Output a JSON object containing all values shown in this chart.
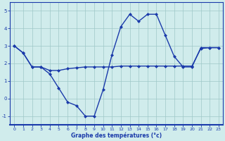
{
  "x": [
    0,
    1,
    2,
    3,
    4,
    5,
    6,
    7,
    8,
    9,
    10,
    11,
    12,
    13,
    14,
    15,
    16,
    17,
    18,
    19,
    20,
    21,
    22,
    23
  ],
  "y_temp": [
    3.0,
    2.6,
    1.8,
    1.8,
    1.4,
    0.6,
    -0.2,
    -0.4,
    -1.0,
    -1.0,
    0.5,
    2.5,
    4.1,
    4.8,
    4.4,
    4.8,
    4.8,
    3.6,
    2.4,
    1.8,
    1.8,
    2.9,
    2.9,
    2.9
  ],
  "y_trend": [
    3.0,
    2.6,
    1.8,
    1.8,
    1.6,
    1.6,
    1.7,
    1.75,
    1.8,
    1.8,
    1.8,
    1.8,
    1.85,
    1.85,
    1.85,
    1.85,
    1.85,
    1.85,
    1.85,
    1.85,
    1.85,
    2.85,
    2.9,
    2.9
  ],
  "xlim": [
    -0.5,
    23.5
  ],
  "ylim": [
    -1.5,
    5.5
  ],
  "yticks": [
    -1,
    0,
    1,
    2,
    3,
    4,
    5
  ],
  "xticks": [
    0,
    1,
    2,
    3,
    4,
    5,
    6,
    7,
    8,
    9,
    10,
    11,
    12,
    13,
    14,
    15,
    16,
    17,
    18,
    19,
    20,
    21,
    22,
    23
  ],
  "xlabel": "Graphe des températures (°c)",
  "line_color": "#1a3aaa",
  "bg_color": "#d0ecec",
  "grid_color": "#9ec8c8",
  "markersize": 2.5,
  "linewidth": 1.0
}
